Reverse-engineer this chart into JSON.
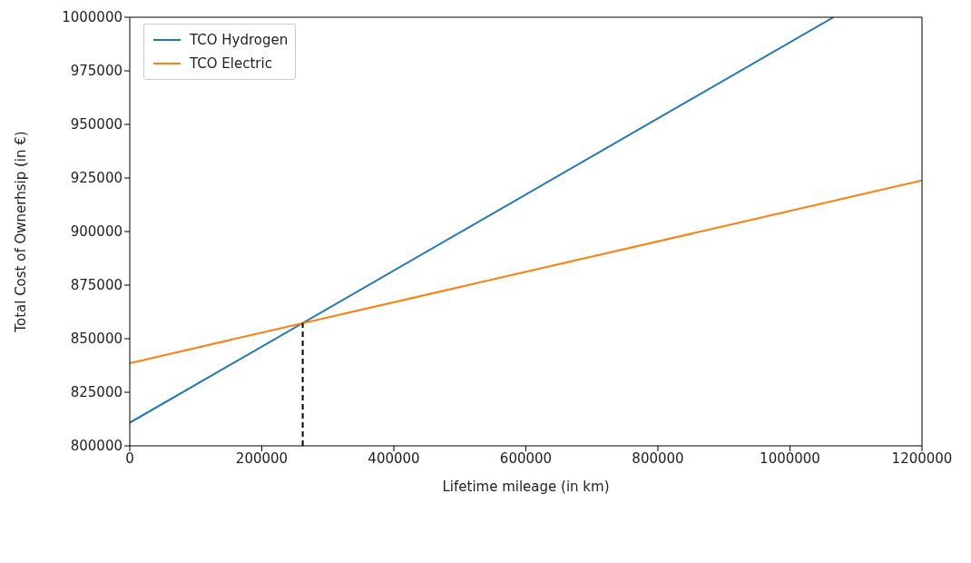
{
  "chart_data": {
    "type": "line",
    "xlabel": "Lifetime mileage (in km)",
    "ylabel": "Total Cost of Ownerhsip (in €)",
    "xlim": [
      0,
      1200000
    ],
    "xticks": [
      0,
      200000,
      400000,
      600000,
      800000,
      1000000,
      1200000
    ],
    "ylim": [
      800000,
      1000000
    ],
    "yticks": [
      800000,
      825000,
      850000,
      875000,
      900000,
      925000,
      950000,
      975000,
      1000000
    ],
    "grid": false,
    "legend": "top left",
    "marker": "none",
    "series": [
      {
        "name": "TCO Hydrogen",
        "color": "#1f77b4",
        "x": [
          0,
          1066000
        ],
        "values": [
          810800,
          1000000
        ]
      },
      {
        "name": "TCO Electric",
        "color": "#ff7f0e",
        "x": [
          0,
          1200000
        ],
        "values": [
          838600,
          923800
        ]
      },
      {
        "color": "#000000",
        "line_style": "dashed",
        "x": [
          262000,
          262000
        ],
        "values": [
          800000,
          857300
        ]
      }
    ]
  }
}
